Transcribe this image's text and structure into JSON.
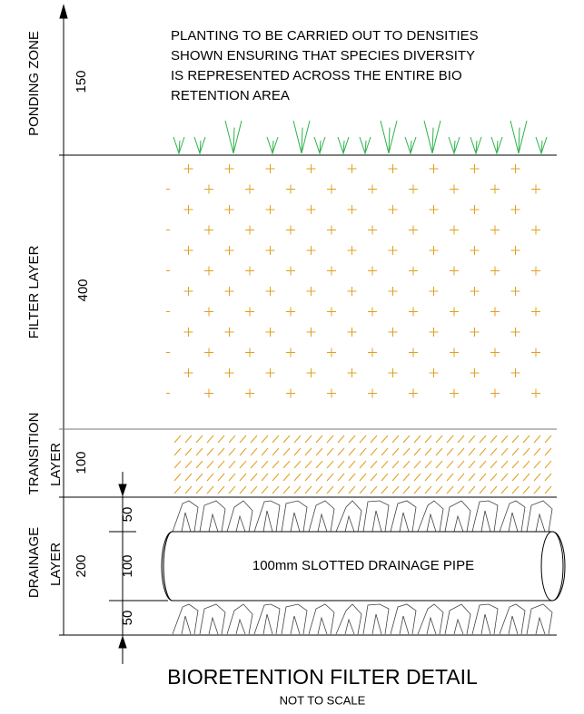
{
  "note": [
    "PLANTING TO BE CARRIED OUT TO DENSITIES",
    "SHOWN ENSURING THAT SPECIES DIVERSITY",
    "IS REPRESENTED ACROSS THE ENTIRE BIO",
    "RETENTION AREA"
  ],
  "layers": [
    {
      "name": [
        "PONDING ZONE"
      ],
      "depth": "150"
    },
    {
      "name": [
        "FILTER LAYER"
      ],
      "depth": "400"
    },
    {
      "name": [
        "TRANSITION",
        "LAYER"
      ],
      "depth": "100"
    },
    {
      "name": [
        "DRAINAGE",
        "LAYER"
      ],
      "depth": "200"
    }
  ],
  "drainage_dims": [
    "50",
    "100",
    "50"
  ],
  "pipe_label": "100mm SLOTTED DRAINAGE PIPE",
  "title": "BIORETENTION FILTER DETAIL",
  "subtitle": "NOT TO SCALE"
}
